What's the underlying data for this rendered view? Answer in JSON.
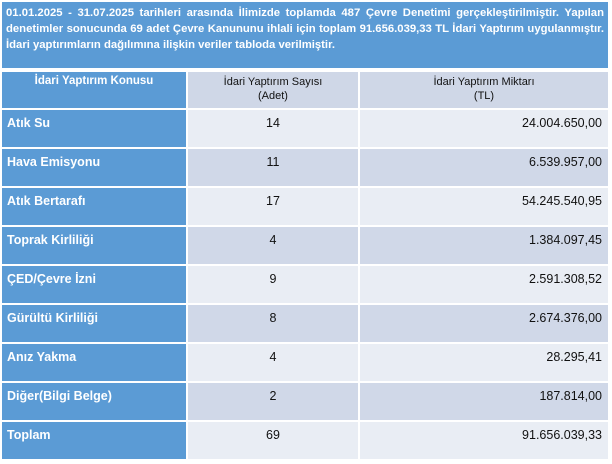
{
  "intro": "01.01.2025 - 31.07.2025 tarihleri arasında İlimizde toplamda 487 Çevre Denetimi gerçekleştirilmiştir. Yapılan denetimler sonucunda 69 adet Çevre Kanununu ihlali için toplam 91.656.039,33 TL İdari Yaptırım uygulanmıştır. İdari yaptırımların dağılımına ilişkin veriler tabloda verilmiştir.",
  "table": {
    "headers": {
      "col1": "İdari Yaptırım Konusu",
      "col2_line1": "İdari Yaptırım Sayısı",
      "col2_line2": "(Adet)",
      "col3_line1": "İdari Yaptırım Miktarı",
      "col3_line2": "(TL)"
    },
    "rows": [
      {
        "topic": "Atık Su",
        "count": "14",
        "amount": "24.004.650,00"
      },
      {
        "topic": "Hava Emisyonu",
        "count": "11",
        "amount": "6.539.957,00"
      },
      {
        "topic": "Atık Bertarafı",
        "count": "17",
        "amount": "54.245.540,95"
      },
      {
        "topic": "Toprak Kirliliği",
        "count": "4",
        "amount": "1.384.097,45"
      },
      {
        "topic": "ÇED/Çevre İzni",
        "count": "9",
        "amount": "2.591.308,52"
      },
      {
        "topic": "Gürültü Kirliliği",
        "count": "8",
        "amount": "2.674.376,00"
      },
      {
        "topic": "Anız Yakma",
        "count": "4",
        "amount": "28.295,41"
      },
      {
        "topic": "Diğer(Bilgi Belge)",
        "count": "2",
        "amount": "187.814,00"
      },
      {
        "topic": "Toplam",
        "count": "69",
        "amount": "91.656.039,33"
      }
    ]
  },
  "colors": {
    "accent": "#5b9bd5",
    "row_light": "#e9edf4",
    "row_dark": "#d0d8e8"
  }
}
